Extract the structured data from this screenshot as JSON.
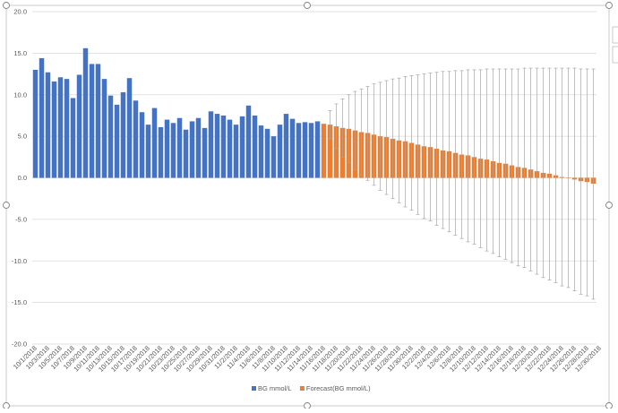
{
  "chart_data": {
    "type": "bar",
    "title": "",
    "xlabel": "",
    "ylabel": "",
    "ylim": [
      -20,
      20
    ],
    "yticks": [
      "20.0",
      "15.0",
      "10.0",
      "5.0",
      "0.0",
      "-5.0",
      "-10.0",
      "-15.0",
      "-20.0"
    ],
    "grid": true,
    "legend": "bottom",
    "start_date": "10/1/2018",
    "series": [
      {
        "name": "BG mmol/L",
        "color": "#4472C4",
        "values": [
          13.0,
          14.4,
          12.7,
          11.6,
          12.1,
          11.9,
          9.6,
          12.4,
          15.6,
          13.7,
          13.7,
          11.9,
          9.9,
          8.8,
          10.3,
          12.0,
          9.3,
          7.9,
          6.4,
          8.4,
          6.1,
          7.0,
          6.6,
          7.2,
          5.8,
          6.8,
          7.2,
          6.0,
          8.0,
          7.7,
          7.5,
          7.0,
          6.4,
          7.4,
          8.7,
          7.5,
          6.3,
          5.9,
          5.0,
          6.4,
          7.7,
          7.1,
          6.6,
          6.7,
          6.6,
          6.8
        ]
      },
      {
        "name": "Forecast(BG mmol/L)",
        "color": "#ED7D31",
        "values": [
          6.5,
          6.4,
          6.2,
          6.0,
          5.9,
          5.7,
          5.5,
          5.4,
          5.2,
          5.0,
          4.9,
          4.7,
          4.5,
          4.4,
          4.2,
          4.0,
          3.8,
          3.7,
          3.5,
          3.3,
          3.2,
          3.0,
          2.8,
          2.7,
          2.5,
          2.3,
          2.2,
          2.0,
          1.8,
          1.7,
          1.5,
          1.3,
          1.2,
          1.0,
          0.8,
          0.6,
          0.5,
          0.3,
          0.1,
          0.0,
          -0.2,
          -0.4,
          -0.5,
          -0.7
        ],
        "error_upper": [
          6.5,
          8.1,
          8.9,
          9.5,
          10.0,
          10.4,
          10.7,
          11.0,
          11.3,
          11.5,
          11.7,
          11.9,
          12.0,
          12.2,
          12.3,
          12.4,
          12.5,
          12.6,
          12.7,
          12.8,
          12.8,
          12.9,
          12.9,
          13.0,
          13.0,
          13.0,
          13.1,
          13.1,
          13.1,
          13.1,
          13.1,
          13.1,
          13.2,
          13.2,
          13.2,
          13.2,
          13.2,
          13.2,
          13.2,
          13.2,
          13.2,
          13.1,
          13.1,
          13.1
        ],
        "error_lower": [
          6.5,
          4.7,
          3.5,
          2.5,
          1.8,
          1.0,
          0.3,
          -0.3,
          -0.9,
          -1.5,
          -2.0,
          -2.5,
          -3.0,
          -3.5,
          -3.9,
          -4.4,
          -4.9,
          -5.2,
          -5.7,
          -6.1,
          -6.5,
          -6.9,
          -7.3,
          -7.7,
          -8.0,
          -8.4,
          -8.8,
          -9.1,
          -9.5,
          -9.8,
          -10.2,
          -10.6,
          -10.8,
          -11.2,
          -11.6,
          -12.0,
          -12.3,
          -12.6,
          -13.0,
          -13.2,
          -13.6,
          -14.0,
          -14.2,
          -14.6
        ]
      }
    ],
    "x_tick_labels": [
      "10/1/2018",
      "10/3/2018",
      "10/5/2018",
      "10/7/2018",
      "10/9/2018",
      "10/11/2018",
      "10/13/2018",
      "10/15/2018",
      "10/17/2018",
      "10/19/2018",
      "10/21/2018",
      "10/23/2018",
      "10/25/2018",
      "10/27/2018",
      "10/29/2018",
      "10/31/2018",
      "11/2/2018",
      "11/4/2018",
      "11/6/2018",
      "11/8/2018",
      "11/10/2018",
      "11/12/2018",
      "11/14/2018",
      "11/16/2018",
      "11/18/2018",
      "11/20/2018",
      "11/22/2018",
      "11/24/2018",
      "11/26/2018",
      "11/28/2018",
      "11/30/2018",
      "12/2/2018",
      "12/4/2018",
      "12/6/2018",
      "12/8/2018",
      "12/10/2018",
      "12/12/2018",
      "12/14/2018",
      "12/16/2018",
      "12/18/2018",
      "12/20/2018",
      "12/22/2018",
      "12/24/2018",
      "12/26/2018",
      "12/28/2018",
      "12/30/2018"
    ]
  }
}
